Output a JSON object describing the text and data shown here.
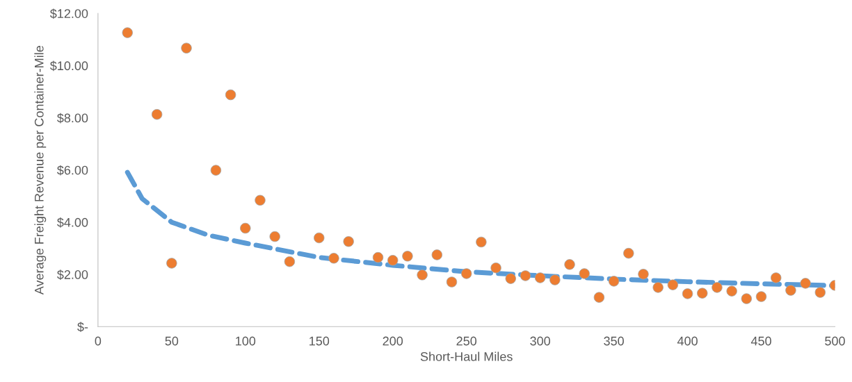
{
  "chart_data": {
    "type": "scatter",
    "xlabel": "Short-Haul Miles",
    "ylabel": "Average Freight Revenue per Container-Mile",
    "xlim": [
      0,
      500
    ],
    "xticks": [
      0,
      50,
      100,
      150,
      200,
      250,
      300,
      350,
      400,
      450,
      500
    ],
    "ylim": [
      0,
      12
    ],
    "yticks": [
      {
        "value": 0,
        "label": "$-"
      },
      {
        "value": 2,
        "label": "$2.00"
      },
      {
        "value": 4,
        "label": "$4.00"
      },
      {
        "value": 6,
        "label": "$6.00"
      },
      {
        "value": 8,
        "label": "$8.00"
      },
      {
        "value": 10,
        "label": "$10.00"
      },
      {
        "value": 12,
        "label": "$12.00"
      }
    ],
    "grid": false,
    "legend": false,
    "series": [
      {
        "color": "#ed7d31",
        "marker": "circle",
        "x": [
          20,
          40,
          50,
          60,
          80,
          90,
          100,
          110,
          120,
          130,
          150,
          160,
          170,
          190,
          200,
          210,
          220,
          230,
          240,
          250,
          260,
          270,
          280,
          290,
          300,
          310,
          320,
          330,
          340,
          350,
          360,
          370,
          380,
          390,
          400,
          410,
          420,
          430,
          440,
          450,
          460,
          470,
          480,
          490,
          500
        ],
        "values": [
          11.26,
          8.13,
          2.43,
          10.67,
          5.99,
          8.88,
          3.77,
          4.84,
          3.45,
          2.49,
          3.4,
          2.62,
          3.26,
          2.65,
          2.54,
          2.7,
          1.98,
          2.75,
          1.71,
          2.03,
          3.24,
          2.25,
          1.84,
          1.95,
          1.87,
          1.79,
          2.38,
          2.03,
          1.12,
          1.74,
          2.81,
          2.01,
          1.5,
          1.6,
          1.26,
          1.28,
          1.5,
          1.36,
          1.07,
          1.15,
          1.87,
          1.39,
          1.66,
          1.31,
          1.58
        ]
      },
      {
        "type": "line",
        "color": "#5b9bd5",
        "line_style": "dashed",
        "marker": "none",
        "x": [
          20,
          30,
          50,
          75,
          100,
          150,
          200,
          250,
          300,
          350,
          400,
          450,
          500
        ],
        "values": [
          5.91,
          4.9,
          4.0,
          3.5,
          3.2,
          2.65,
          2.35,
          2.1,
          1.95,
          1.82,
          1.72,
          1.64,
          1.57
        ]
      }
    ]
  }
}
